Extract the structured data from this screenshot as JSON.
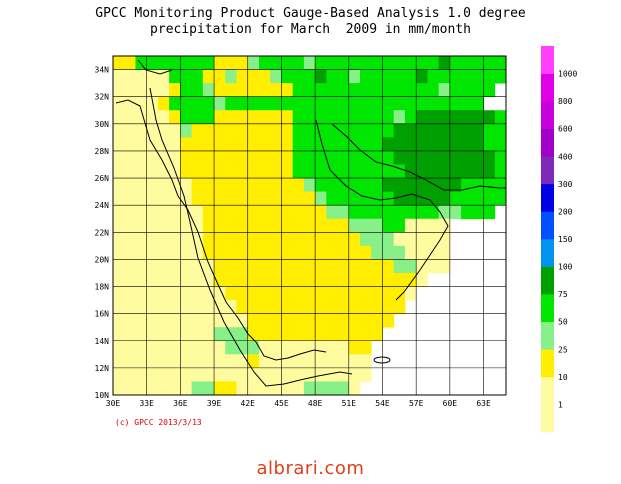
{
  "title": {
    "line1": "GPCC Monitoring Product Gauge-Based Analysis 1.0 degree",
    "line2": "precipitation for March  2009 in mm/month"
  },
  "copyright": "(c) GPCC 2013/3/13",
  "watermark": "albrari.com",
  "chart_data": {
    "type": "heatmap",
    "x_range": [
      30,
      65
    ],
    "y_range": [
      10,
      35
    ],
    "x_ticks": [
      "30E",
      "33E",
      "36E",
      "39E",
      "42E",
      "45E",
      "48E",
      "51E",
      "54E",
      "57E",
      "60E",
      "63E"
    ],
    "y_ticks": [
      "34N",
      "32N",
      "30N",
      "28N",
      "26N",
      "24N",
      "22N",
      "20N",
      "18N",
      "16N",
      "14N",
      "12N",
      "10N"
    ],
    "legend": {
      "labels": [
        "1",
        "10",
        "25",
        "50",
        "75",
        "100",
        "150",
        "200",
        "300",
        "400",
        "600",
        "800",
        "1000"
      ],
      "colors": [
        "#fffca0",
        "#ffee00",
        "#88f088",
        "#00e600",
        "#00a000",
        "#0094ee",
        "#0050ff",
        "#0000e6",
        "#7d2ab8",
        "#a000c8",
        "#c800dc",
        "#e000e6",
        "#ff40ff"
      ]
    },
    "class_colors": [
      "#ffffff",
      "#fffca0",
      "#ffee00",
      "#88f088",
      "#00e600",
      "#00a000",
      "#0094ee"
    ],
    "rows_north_to_south": [
      "22444444422234444344444444444544444",
      "111114442232223444544344444544444444",
      "1111124432222222444444444444434444",
      "111124444344444444444444444444444",
      "1111124442222222444444444345555555442",
      "1111113222222222444444444555555554442",
      "111111222222222244444444555555555444",
      "1111112222222222444444444555555555444",
      "1111112222222222444444444455555555444",
      "1111111222222222234444445555555444444",
      "1111111222222222223444444555554444444",
      "1111111122222222222334444444433444",
      "1111111122222222222223334411110000000",
      "1111111122222222222222333111110000000",
      "1111111122222222222222233311110000000",
      "1111111112222222222222222331110000000",
      "1111111112222222222222222221000000000",
      "1111111111222222222222222210000000000",
      "1111111111122222222222222200000000000",
      "1111111111112222222222222000000000000",
      "1111111113332222222222220000000000000",
      "1111111111333111111112200000000000000",
      "1111111111112111111111100000000000000",
      "1111111111111111111111100000000000000",
      "1111111332211111133331000000000000000"
    ]
  }
}
